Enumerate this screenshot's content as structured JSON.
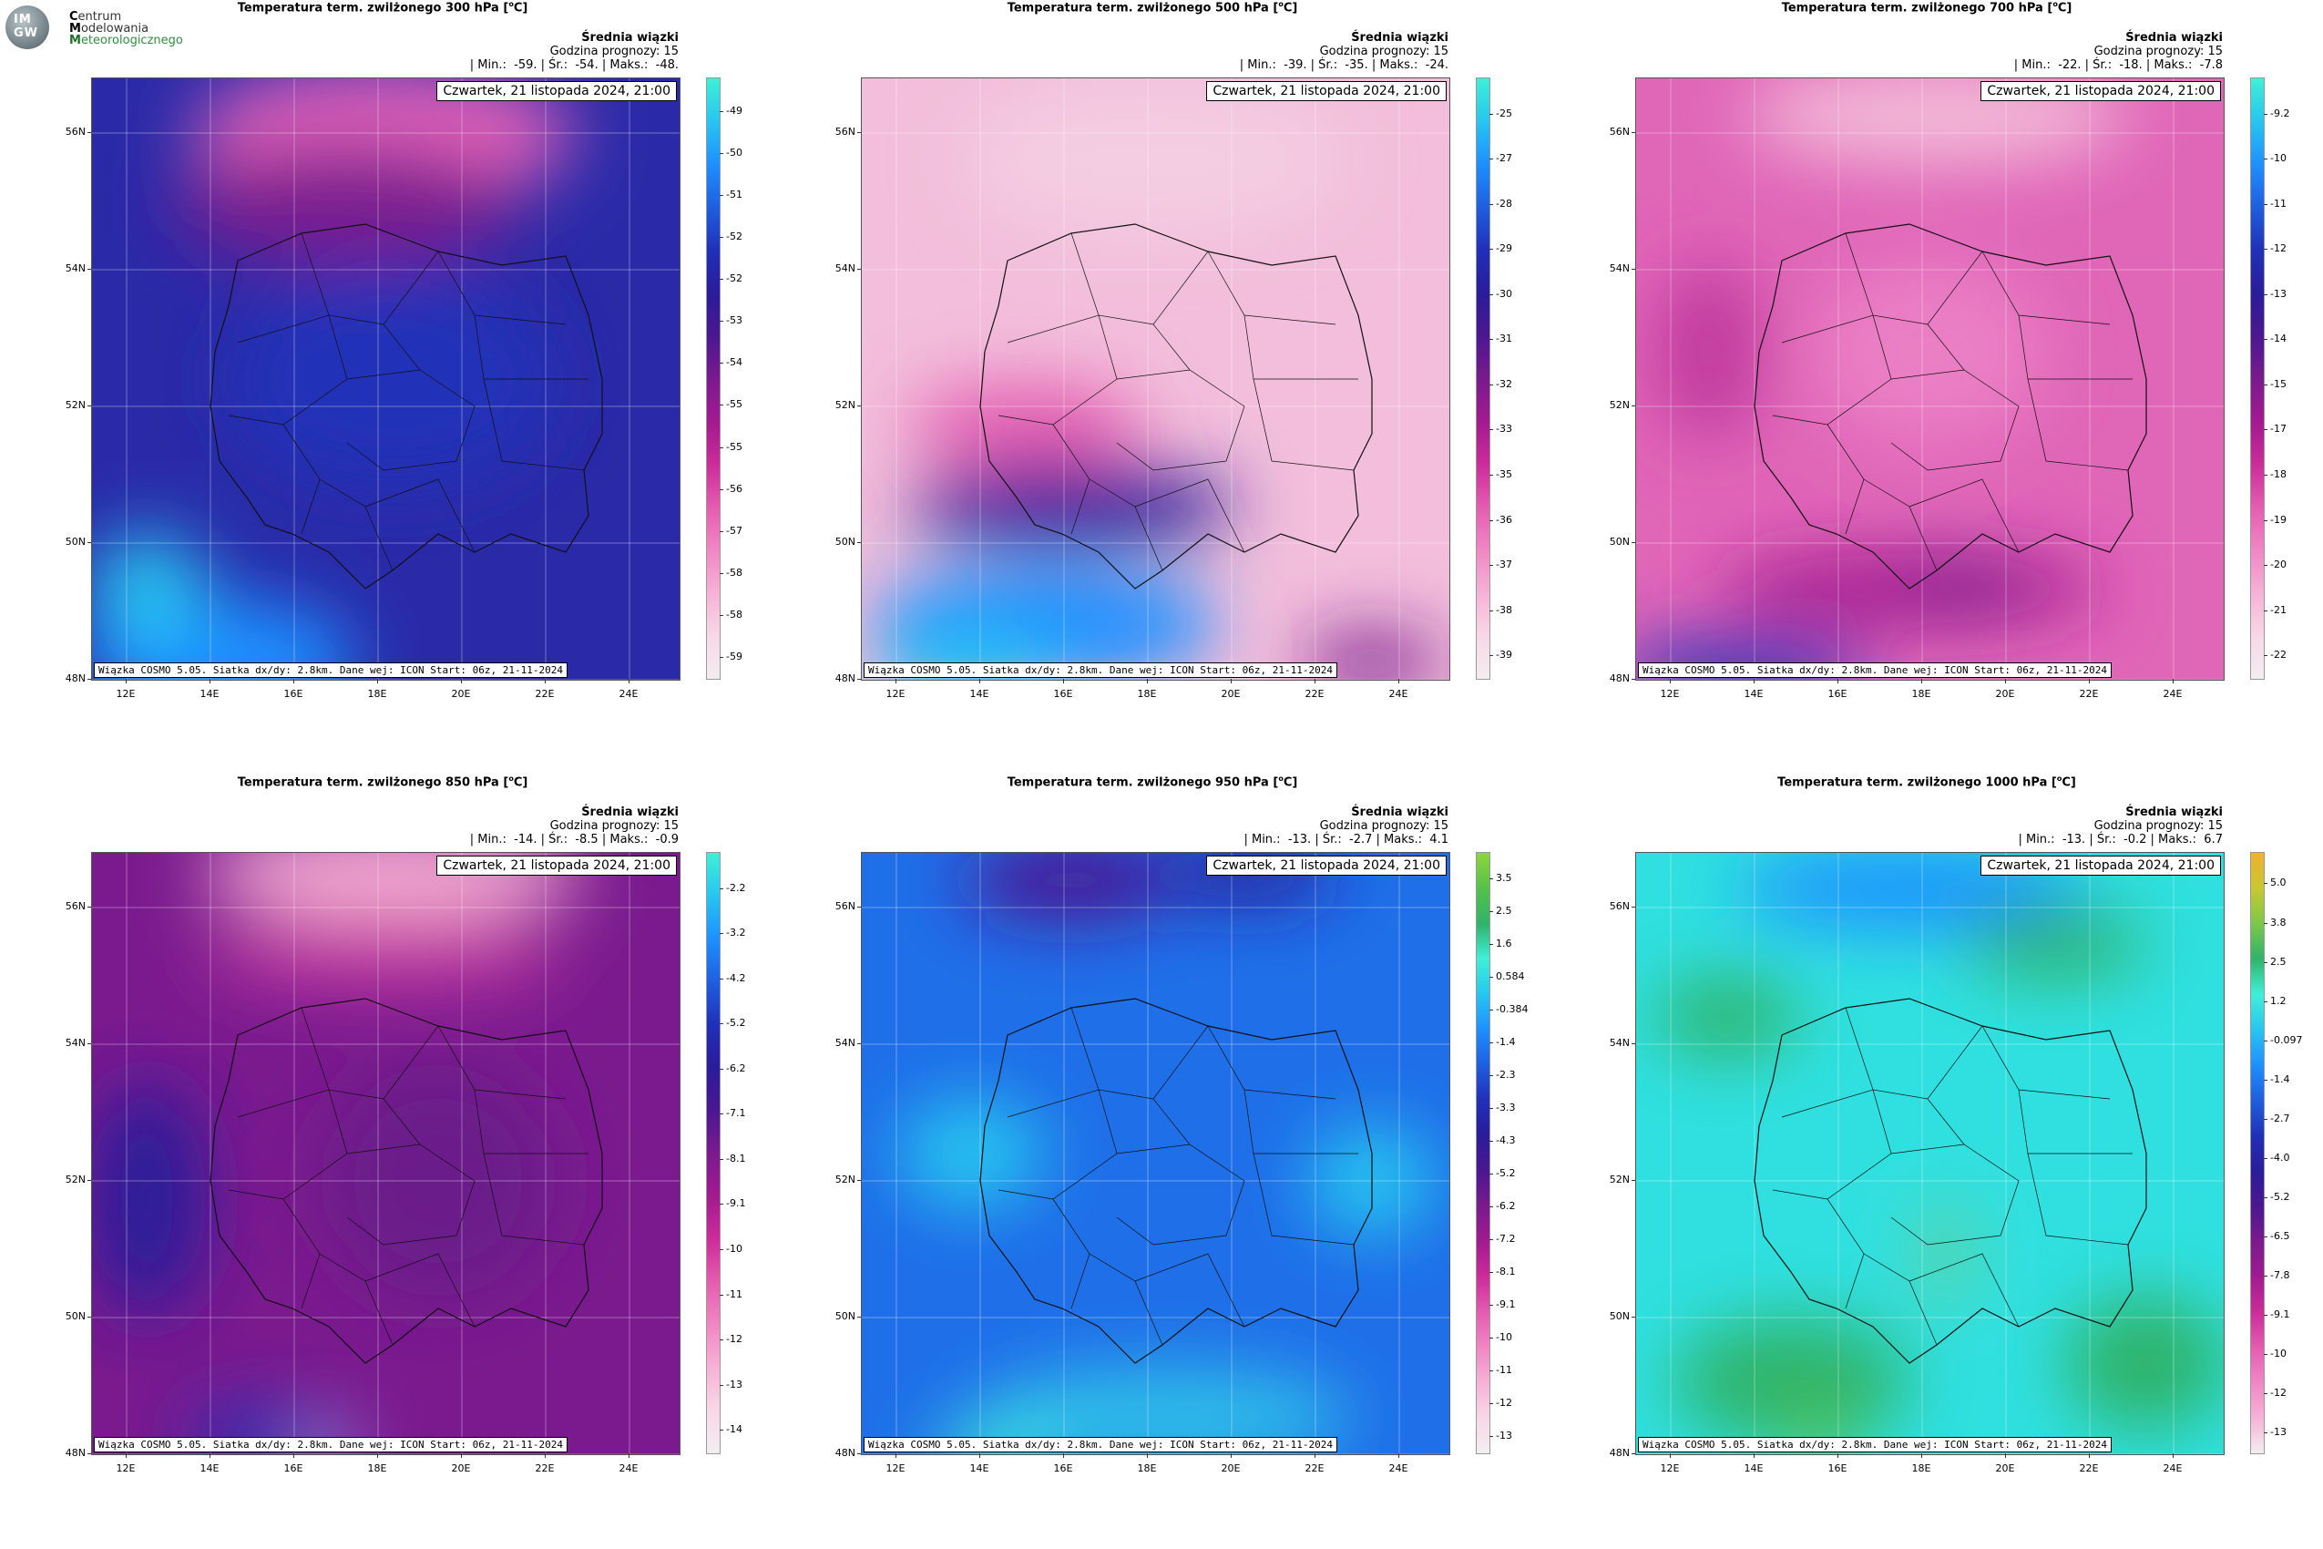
{
  "logo": {
    "mark_line1": "IM",
    "mark_line2": "GW",
    "line1_initial": "C",
    "line1_rest": "entrum",
    "line2_initial": "M",
    "line2_rest": "odelowania",
    "line3_initial": "M",
    "line3_rest": "eteorologicznego"
  },
  "header_labels": {
    "mean": "Średnia wiązki",
    "forecast_hour": "Godzina prognozy: 15",
    "min_label": "| Min.:",
    "avg_label": "| Śr.:",
    "max_label": "| Maks.:"
  },
  "date_label": "Czwartek, 21 listopada 2024, 21:00",
  "source_label": "Wiązka COSMO 5.05. Siatka dx/dy: 2.8km. Dane wej: ICON Start: 06z, 21-11-2024",
  "lat_labels": [
    "56N",
    "54N",
    "52N",
    "50N",
    "48N"
  ],
  "lon_labels": [
    "12E",
    "14E",
    "16E",
    "18E",
    "20E",
    "22E",
    "24E"
  ],
  "panels": [
    {
      "title": "Temperatura term. zwilżonego 300 hPa [",
      "unit_sup": "o",
      "unit_tail": "C]",
      "min": "-59.",
      "avg": "-54.",
      "max": "-48.",
      "colorbar_ticks": [
        "-49",
        "-50",
        "-51",
        "-52",
        "-52",
        "-53",
        "-54",
        "-55",
        "-55",
        "-56",
        "-57",
        "-58",
        "-58",
        "-59"
      ],
      "colorbar_colors": [
        "#3ff0d6",
        "#27c6f0",
        "#1e90ff",
        "#1f5fdf",
        "#2030b8",
        "#2a1c9a",
        "#4b1790",
        "#7a1a8e",
        "#a21a90",
        "#cc2c99",
        "#e45cb0",
        "#f087c4",
        "#f6b2d6",
        "#f8d8e6",
        "#f2eef0"
      ]
    },
    {
      "title": "Temperatura term. zwilżonego 500 hPa [",
      "unit_sup": "o",
      "unit_tail": "C]",
      "min": "-39.",
      "avg": "-35.",
      "max": "-24.",
      "colorbar_ticks": [
        "-25",
        "-27",
        "-28",
        "-29",
        "-30",
        "-31",
        "-32",
        "-33",
        "-35",
        "-36",
        "-37",
        "-38",
        "-39"
      ],
      "colorbar_colors": [
        "#3ff0d6",
        "#27c6f0",
        "#1e90ff",
        "#1f5fdf",
        "#2030b8",
        "#2a1c9a",
        "#4b1790",
        "#7a1a8e",
        "#a21a90",
        "#cc2c99",
        "#e45cb0",
        "#f087c4",
        "#f6b2d6",
        "#f8d8e6",
        "#f2eef0"
      ]
    },
    {
      "title": "Temperatura term. zwilżonego 700 hPa [",
      "unit_sup": "o",
      "unit_tail": "C]",
      "min": "-22.",
      "avg": "-18.",
      "max": "-7.8",
      "colorbar_ticks": [
        "-9.2",
        "-10",
        "-11",
        "-12",
        "-13",
        "-14",
        "-15",
        "-17",
        "-18",
        "-19",
        "-20",
        "-21",
        "-22"
      ],
      "colorbar_colors": [
        "#3ff0d6",
        "#27c6f0",
        "#1e90ff",
        "#1f5fdf",
        "#2030b8",
        "#2a1c9a",
        "#4b1790",
        "#7a1a8e",
        "#a21a90",
        "#cc2c99",
        "#e45cb0",
        "#f087c4",
        "#f6b2d6",
        "#f8d8e6",
        "#f2eef0"
      ]
    },
    {
      "title": "Temperatura term. zwilżonego 850 hPa [",
      "unit_sup": "o",
      "unit_tail": "C]",
      "min": "-14.",
      "avg": "-8.5",
      "max": "-0.9",
      "colorbar_ticks": [
        "-2.2",
        "-3.2",
        "-4.2",
        "-5.2",
        "-6.2",
        "-7.1",
        "-8.1",
        "-9.1",
        "-10",
        "-11",
        "-12",
        "-13",
        "-14"
      ],
      "colorbar_colors": [
        "#3ff0d6",
        "#27c6f0",
        "#1e90ff",
        "#1f5fdf",
        "#2030b8",
        "#2a1c9a",
        "#4b1790",
        "#7a1a8e",
        "#a21a90",
        "#cc2c99",
        "#e45cb0",
        "#f087c4",
        "#f6b2d6",
        "#f8d8e6",
        "#f2eef0"
      ]
    },
    {
      "title": "Temperatura term. zwilżonego 950 hPa [",
      "unit_sup": "o",
      "unit_tail": "C]",
      "min": "-13.",
      "avg": "-2.7",
      "max": "4.1",
      "colorbar_ticks": [
        "3.5",
        "2.5",
        "1.6",
        "0.584",
        "-0.384",
        "-1.4",
        "-2.3",
        "-3.3",
        "-4.3",
        "-5.2",
        "-6.2",
        "-7.2",
        "-8.1",
        "-9.1",
        "-10",
        "-11",
        "-12",
        "-13"
      ],
      "colorbar_colors": [
        "#8cd63a",
        "#55c24a",
        "#2fb36a",
        "#3ff0d6",
        "#27c6f0",
        "#1e90ff",
        "#1f5fdf",
        "#2030b8",
        "#2a1c9a",
        "#4b1790",
        "#7a1a8e",
        "#a21a90",
        "#cc2c99",
        "#e45cb0",
        "#f087c4",
        "#f6b2d6",
        "#f8d8e6",
        "#f2eef0"
      ]
    },
    {
      "title": "Temperatura term. zwilżonego 1000 hPa [",
      "unit_sup": "o",
      "unit_tail": "C]",
      "min": "-13.",
      "avg": "-0.2",
      "max": "6.7",
      "colorbar_ticks": [
        "5.0",
        "3.8",
        "2.5",
        "1.2",
        "-0.097",
        "-1.4",
        "-2.7",
        "-4.0",
        "-5.2",
        "-6.5",
        "-7.8",
        "-9.1",
        "-10",
        "-12",
        "-13"
      ],
      "colorbar_colors": [
        "#f0b030",
        "#c8c830",
        "#7cc84a",
        "#2fb36a",
        "#3ff0d6",
        "#27c6f0",
        "#1e90ff",
        "#1f5fdf",
        "#2030b8",
        "#2a1c9a",
        "#4b1790",
        "#7a1a8e",
        "#a21a90",
        "#cc2c99",
        "#e45cb0",
        "#f087c4",
        "#f6b2d6",
        "#f2eef0"
      ]
    }
  ]
}
